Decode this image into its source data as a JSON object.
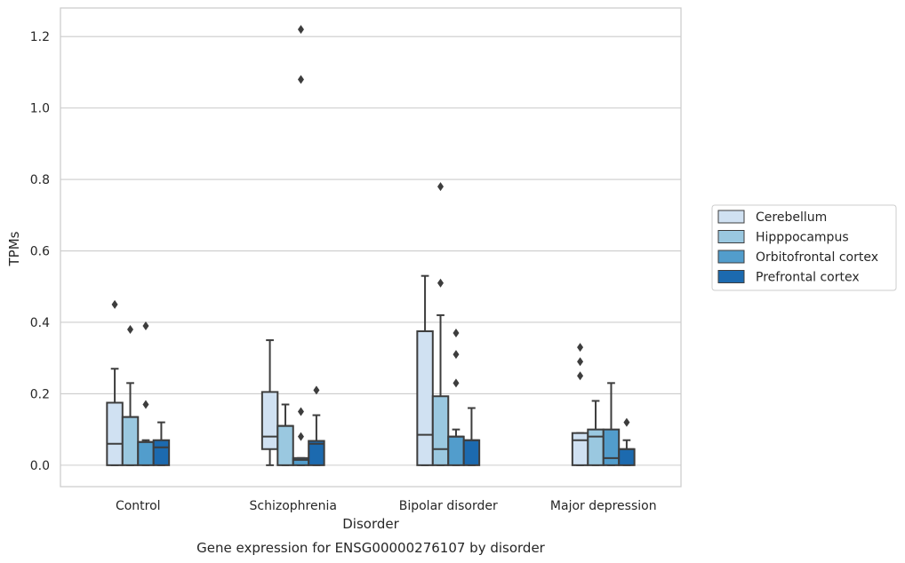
{
  "chart_data": {
    "type": "box",
    "title": "Gene expression for ENSG00000276107 by disorder",
    "xlabel": "Disorder",
    "ylabel": "TPMs",
    "ylim": [
      -0.06,
      1.28
    ],
    "yticks": [
      0.0,
      0.2,
      0.4,
      0.6,
      0.8,
      1.0,
      1.2
    ],
    "ytick_labels": [
      "0.0",
      "0.2",
      "0.4",
      "0.6",
      "0.8",
      "1.0",
      "1.2"
    ],
    "grid": "horizontal",
    "legend_position": "right",
    "categories": [
      "Control",
      "Schizophrenia",
      "Bipolar disorder",
      "Major depression"
    ],
    "series": [
      {
        "name": "Cerebellum",
        "color": "#d0e1f2",
        "boxes": [
          {
            "whislo": 0.0,
            "q1": 0.0,
            "med": 0.06,
            "q3": 0.175,
            "whishi": 0.27,
            "fliers": [
              0.45
            ]
          },
          {
            "whislo": 0.0,
            "q1": 0.045,
            "med": 0.08,
            "q3": 0.205,
            "whishi": 0.35,
            "fliers": []
          },
          {
            "whislo": 0.0,
            "q1": 0.0,
            "med": 0.085,
            "q3": 0.375,
            "whishi": 0.53,
            "fliers": []
          },
          {
            "whislo": 0.0,
            "q1": 0.0,
            "med": 0.07,
            "q3": 0.09,
            "whishi": 0.09,
            "fliers": [
              0.25,
              0.29,
              0.33
            ]
          }
        ]
      },
      {
        "name": "Hipppocampus",
        "color": "#9ac8e0",
        "boxes": [
          {
            "whislo": 0.0,
            "q1": 0.0,
            "med": 0.135,
            "q3": 0.135,
            "whishi": 0.23,
            "fliers": [
              0.38
            ]
          },
          {
            "whislo": 0.0,
            "q1": 0.0,
            "med": 0.11,
            "q3": 0.11,
            "whishi": 0.17,
            "fliers": []
          },
          {
            "whislo": 0.0,
            "q1": 0.0,
            "med": 0.045,
            "q3": 0.193,
            "whishi": 0.42,
            "fliers": [
              0.51,
              0.78
            ]
          },
          {
            "whislo": 0.0,
            "q1": 0.0,
            "med": 0.08,
            "q3": 0.1,
            "whishi": 0.18,
            "fliers": []
          }
        ]
      },
      {
        "name": "Orbitofrontal cortex",
        "color": "#529dcc",
        "boxes": [
          {
            "whislo": 0.0,
            "q1": 0.0,
            "med": 0.065,
            "q3": 0.065,
            "whishi": 0.07,
            "fliers": [
              0.17,
              0.39
            ]
          },
          {
            "whislo": 0.0,
            "q1": 0.0,
            "med": 0.015,
            "q3": 0.02,
            "whishi": 0.02,
            "fliers": [
              0.08,
              0.15,
              1.08,
              1.22
            ]
          },
          {
            "whislo": 0.0,
            "q1": 0.0,
            "med": 0.08,
            "q3": 0.08,
            "whishi": 0.1,
            "fliers": [
              0.23,
              0.31,
              0.37
            ]
          },
          {
            "whislo": 0.0,
            "q1": 0.0,
            "med": 0.02,
            "q3": 0.1,
            "whishi": 0.23,
            "fliers": []
          }
        ]
      },
      {
        "name": "Prefrontal cortex",
        "color": "#1c6aaf",
        "boxes": [
          {
            "whislo": 0.0,
            "q1": 0.0,
            "med": 0.05,
            "q3": 0.07,
            "whishi": 0.12,
            "fliers": []
          },
          {
            "whislo": 0.0,
            "q1": 0.0,
            "med": 0.06,
            "q3": 0.068,
            "whishi": 0.14,
            "fliers": [
              0.21
            ]
          },
          {
            "whislo": 0.0,
            "q1": 0.0,
            "med": 0.07,
            "q3": 0.07,
            "whishi": 0.16,
            "fliers": []
          },
          {
            "whislo": 0.0,
            "q1": 0.0,
            "med": 0.045,
            "q3": 0.045,
            "whishi": 0.07,
            "fliers": [
              0.12
            ]
          }
        ]
      }
    ]
  }
}
